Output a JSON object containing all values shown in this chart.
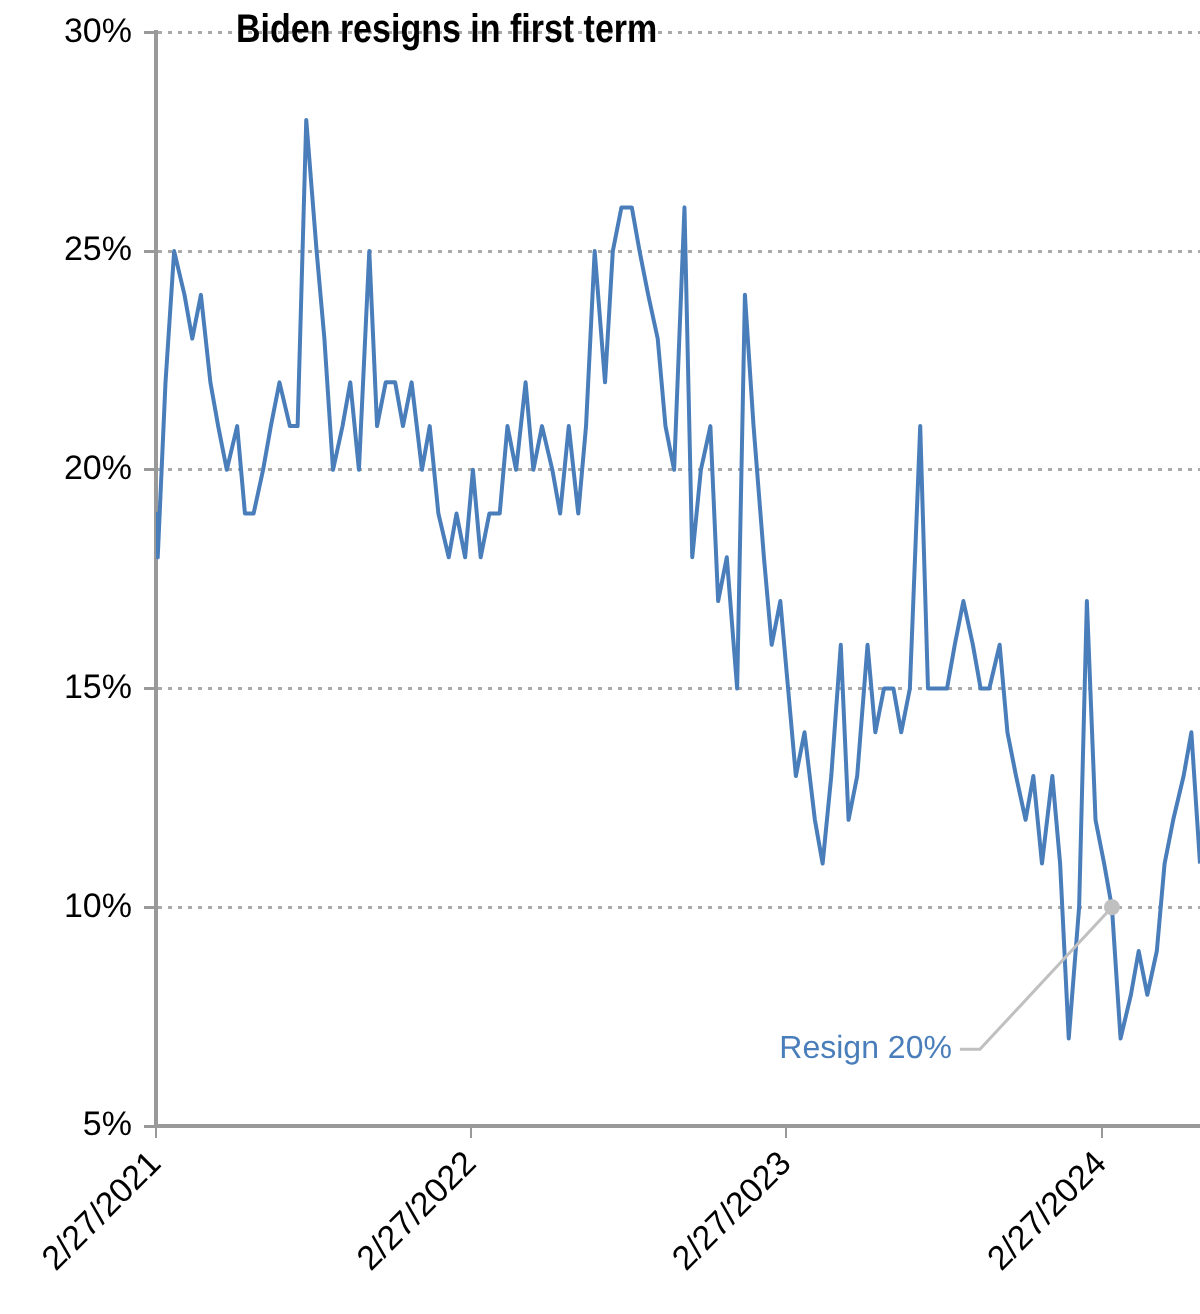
{
  "chart_data": {
    "type": "line",
    "title": "Biden resigns in first term",
    "x": [
      "2021-02-27",
      "2021-03-01",
      "2021-03-10",
      "2021-03-20",
      "2021-04-01",
      "2021-04-10",
      "2021-04-20",
      "2021-05-01",
      "2021-05-10",
      "2021-05-20",
      "2021-06-01",
      "2021-06-10",
      "2021-06-20",
      "2021-07-01",
      "2021-07-10",
      "2021-07-20",
      "2021-08-01",
      "2021-08-10",
      "2021-08-20",
      "2021-09-01",
      "2021-09-10",
      "2021-09-20",
      "2021-10-01",
      "2021-10-10",
      "2021-10-20",
      "2021-11-01",
      "2021-11-10",
      "2021-11-20",
      "2021-12-01",
      "2021-12-10",
      "2021-12-20",
      "2022-01-01",
      "2022-01-10",
      "2022-01-20",
      "2022-02-01",
      "2022-02-10",
      "2022-02-20",
      "2022-03-01",
      "2022-03-10",
      "2022-03-20",
      "2022-04-01",
      "2022-04-10",
      "2022-04-20",
      "2022-05-01",
      "2022-05-10",
      "2022-05-20",
      "2022-06-01",
      "2022-06-10",
      "2022-06-20",
      "2022-07-01",
      "2022-07-10",
      "2022-07-20",
      "2022-08-01",
      "2022-08-10",
      "2022-08-20",
      "2022-09-01",
      "2022-09-10",
      "2022-09-20",
      "2022-10-01",
      "2022-10-10",
      "2022-10-20",
      "2022-11-01",
      "2022-11-10",
      "2022-11-20",
      "2022-12-01",
      "2022-12-10",
      "2022-12-20",
      "2023-01-01",
      "2023-01-10",
      "2023-01-20",
      "2023-02-01",
      "2023-02-10",
      "2023-02-20",
      "2023-03-01",
      "2023-03-10",
      "2023-03-20",
      "2023-04-01",
      "2023-04-10",
      "2023-04-20",
      "2023-05-01",
      "2023-05-10",
      "2023-05-20",
      "2023-06-01",
      "2023-06-10",
      "2023-06-20",
      "2023-07-01",
      "2023-07-10",
      "2023-07-20",
      "2023-08-01",
      "2023-08-10",
      "2023-08-20",
      "2023-09-01",
      "2023-09-10",
      "2023-09-20",
      "2023-10-01",
      "2023-10-10",
      "2023-10-20",
      "2023-11-01",
      "2023-11-10",
      "2023-11-20",
      "2023-12-01",
      "2023-12-10",
      "2023-12-20",
      "2024-01-01",
      "2024-01-10",
      "2024-01-20",
      "2024-02-01",
      "2024-02-10",
      "2024-02-20",
      "2024-03-01",
      "2024-03-10",
      "2024-03-20",
      "2024-04-01",
      "2024-04-10",
      "2024-04-20",
      "2024-05-01",
      "2024-05-10",
      "2024-05-20",
      "2024-06-01",
      "2024-06-10",
      "2024-06-20"
    ],
    "series": [
      {
        "color": "#4a7ebb",
        "values": [
          19,
          18,
          22,
          25,
          24,
          23,
          24,
          22,
          21,
          20,
          21,
          19,
          19,
          20,
          21,
          22,
          21,
          21,
          28,
          25,
          23,
          20,
          21,
          22,
          20,
          25,
          21,
          22,
          22,
          21,
          22,
          20,
          21,
          19,
          18,
          19,
          18,
          20,
          18,
          19,
          19,
          21,
          20,
          22,
          20,
          21,
          20,
          19,
          21,
          19,
          21,
          25,
          22,
          25,
          26,
          26,
          25,
          24,
          23,
          21,
          20,
          26,
          18,
          20,
          21,
          17,
          18,
          15,
          24,
          21,
          18,
          16,
          17,
          15,
          13,
          14,
          12,
          11,
          13,
          16,
          12,
          13,
          16,
          14,
          15,
          15,
          14,
          15,
          21,
          15,
          15,
          15,
          16,
          17,
          16,
          15,
          15,
          16,
          14,
          13,
          12,
          13,
          11,
          13,
          11,
          7,
          10,
          17,
          12,
          11,
          10,
          7,
          8,
          9,
          8,
          9,
          11,
          12,
          13,
          14,
          11
        ]
      }
    ],
    "xlim": [
      "2021-02-27",
      "2024-06-20"
    ],
    "xticks": [
      {
        "value": "2021-02-27",
        "label": "2/27/2021"
      },
      {
        "value": "2022-02-27",
        "label": "2/27/2022"
      },
      {
        "value": "2023-02-27",
        "label": "2/27/2023"
      },
      {
        "value": "2024-02-27",
        "label": "2/27/2024"
      }
    ],
    "ylim": [
      5,
      30
    ],
    "yticks": [
      {
        "value": 5,
        "label": "5%"
      },
      {
        "value": 10,
        "label": "10%"
      },
      {
        "value": 15,
        "label": "15%"
      },
      {
        "value": 20,
        "label": "20%"
      },
      {
        "value": 25,
        "label": "25%"
      },
      {
        "value": 30,
        "label": "30%"
      }
    ],
    "grid": "y",
    "legend": false,
    "marker": "none",
    "line_style": "solid",
    "annotations": [
      {
        "text": "Resign 20%",
        "x": "2024-03-10",
        "y": 10
      }
    ]
  }
}
